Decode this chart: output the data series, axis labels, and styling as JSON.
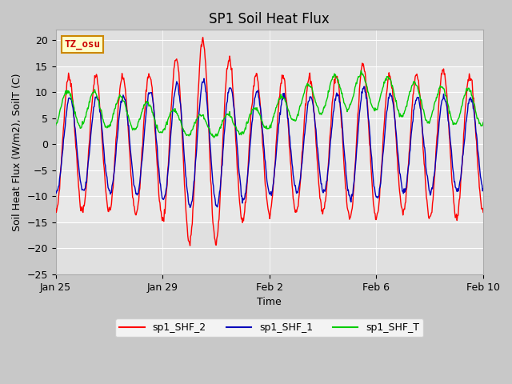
{
  "title": "SP1 Soil Heat Flux",
  "xlabel": "Time",
  "ylabel": "Soil Heat Flux (W/m2), SoilT (C)",
  "ylim": [
    -25,
    22
  ],
  "yticks": [
    -25,
    -20,
    -15,
    -10,
    -5,
    0,
    5,
    10,
    15,
    20
  ],
  "xtick_labels": [
    "Jan 25",
    "Jan 29",
    "Feb 2",
    "Feb 6",
    "Feb 10"
  ],
  "legend_labels": [
    "sp1_SHF_2",
    "sp1_SHF_1",
    "sp1_SHF_T"
  ],
  "line_colors": [
    "#ff0000",
    "#0000bb",
    "#00cc00"
  ],
  "fig_bg": "#c8c8c8",
  "plot_bg": "#e0e0e0",
  "inner_band_color": "#e8e8e8",
  "annotation_text": "TZ_osu",
  "annotation_bg": "#ffffcc",
  "annotation_border": "#cc8800",
  "title_fontsize": 12,
  "label_fontsize": 9,
  "tick_fontsize": 9,
  "legend_fontsize": 9,
  "n_days": 16
}
